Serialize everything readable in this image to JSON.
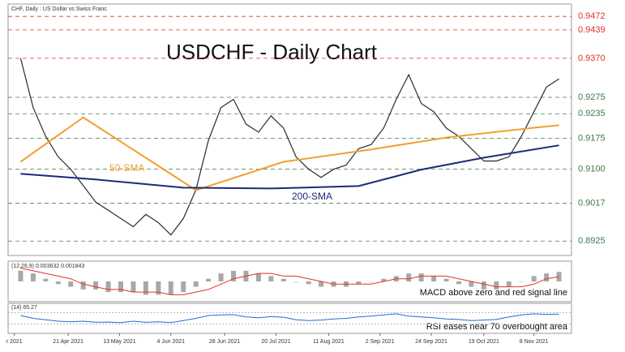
{
  "chart_data": {
    "type": "line",
    "title": "USDCHF - Daily Chart",
    "subtitle": "CHF, Daily : US Dollar vs Swiss Franc",
    "xlim": [
      -1,
      44
    ],
    "ylim": [
      0.889,
      0.9502
    ],
    "xticks": [
      {
        "value": -0.5,
        "label": "r 2021"
      },
      {
        "value": 3.8,
        "label": "21 Apr 2021"
      },
      {
        "value": 7.9,
        "label": "13 May 2021"
      },
      {
        "value": 12,
        "label": "4 Jun 2021"
      },
      {
        "value": 16.3,
        "label": "28 Jun 2021"
      },
      {
        "value": 20.4,
        "label": "20 Jul 2021"
      },
      {
        "value": 24.6,
        "label": "11 Aug 2021"
      },
      {
        "value": 28.7,
        "label": "2 Sep 2021"
      },
      {
        "value": 32.8,
        "label": "24 Sep 2021"
      },
      {
        "value": 37,
        "label": "19 Oct 2021"
      },
      {
        "value": 41,
        "label": "8 Nov 2021"
      }
    ],
    "levels": [
      {
        "value": 0.9472,
        "label": "0.9472",
        "color": "#e0302a"
      },
      {
        "value": 0.9439,
        "label": "0.9439",
        "color": "#e0302a"
      },
      {
        "value": 0.937,
        "label": "0.9370",
        "color": "#e0302a"
      },
      {
        "value": 0.9275,
        "label": "0.9275",
        "color": "#3c7a4a"
      },
      {
        "value": 0.9235,
        "label": "0.9235",
        "color": "#3c7a4a"
      },
      {
        "value": 0.9175,
        "label": "0.9175",
        "color": "#3c7a4a"
      },
      {
        "value": 0.91,
        "label": "0.9100",
        "color": "#3c7a4a"
      },
      {
        "value": 0.9017,
        "label": "0.9017",
        "color": "#3c7a4a"
      },
      {
        "value": 0.8925,
        "label": "0.8925",
        "color": "#3c7a4a"
      }
    ],
    "series": [
      {
        "color": "#2b2b2b",
        "values": [
          0.937,
          0.925,
          0.918,
          0.913,
          0.91,
          0.906,
          0.902,
          0.9,
          0.898,
          0.896,
          0.899,
          0.897,
          0.894,
          0.898,
          0.905,
          0.917,
          0.925,
          0.927,
          0.921,
          0.919,
          0.923,
          0.92,
          0.913,
          0.91,
          0.908,
          0.91,
          0.911,
          0.915,
          0.916,
          0.92,
          0.927,
          0.933,
          0.926,
          0.924,
          0.92,
          0.918,
          0.915,
          0.912,
          0.912,
          0.913,
          0.918,
          0.924,
          0.93,
          0.932
        ]
      },
      {
        "name": "50-SMA",
        "color": "#f0a030",
        "x": [
          0,
          5,
          14,
          21,
          28,
          34,
          41,
          43
        ],
        "values": [
          0.9118,
          0.9226,
          0.9049,
          0.9118,
          0.9148,
          0.9177,
          0.9201,
          0.9207
        ]
      },
      {
        "name": "200-SMA",
        "color": "#1c2a7a",
        "x": [
          0,
          6,
          13,
          20,
          27,
          32,
          37,
          43
        ],
        "values": [
          0.9089,
          0.9075,
          0.9055,
          0.9053,
          0.9059,
          0.9099,
          0.9128,
          0.9158
        ]
      }
    ],
    "macd": {
      "label": "(12,26,9) 0.003632 0.001843",
      "annotation": "MACD above zero and red signal line",
      "ylim": [
        -0.007,
        0.007
      ],
      "color": "#a8a8a8",
      "signal_color": "#e0302a",
      "values": [
        0.004,
        0.003,
        0.001,
        -0.001,
        -0.002,
        -0.003,
        -0.003,
        -0.004,
        -0.004,
        -0.004,
        -0.005,
        -0.005,
        -0.005,
        -0.004,
        -0.002,
        0.001,
        0.003,
        0.004,
        0.004,
        0.003,
        0.002,
        0.001,
        0,
        -0.001,
        -0.002,
        -0.002,
        -0.002,
        -0.001,
        0,
        0.001,
        0.002,
        0.003,
        0.003,
        0.002,
        0.001,
        -0.001,
        -0.002,
        -0.003,
        -0.003,
        -0.002,
        0,
        0.002,
        0.003,
        0.0036
      ],
      "signal": [
        0.005,
        0.004,
        0.003,
        0.002,
        0.001,
        -0.001,
        -0.002,
        -0.003,
        -0.003,
        -0.004,
        -0.004,
        -0.004,
        -0.005,
        -0.005,
        -0.004,
        -0.003,
        -0.001,
        0.001,
        0.002,
        0.003,
        0.003,
        0.002,
        0.002,
        0.001,
        0,
        -0.001,
        -0.001,
        -0.001,
        -0.001,
        0,
        0.001,
        0.001,
        0.002,
        0.002,
        0.002,
        0.001,
        0,
        -0.001,
        -0.002,
        -0.002,
        -0.002,
        -0.001,
        0.001,
        0.0018
      ]
    },
    "rsi": {
      "label": "(14) 65.27",
      "annotation": "RSI eases near 70 overbought area",
      "ylim": [
        0,
        100
      ],
      "guides": [
        70,
        30
      ],
      "color": "#1e6fd0",
      "values": [
        60,
        50,
        45,
        40,
        38,
        40,
        36,
        37,
        35,
        40,
        36,
        38,
        35,
        42,
        50,
        60,
        62,
        63,
        55,
        52,
        56,
        54,
        45,
        42,
        44,
        48,
        50,
        55,
        58,
        62,
        66,
        58,
        55,
        52,
        48,
        46,
        42,
        44,
        46,
        55,
        62,
        66,
        64,
        65.27
      ]
    }
  }
}
